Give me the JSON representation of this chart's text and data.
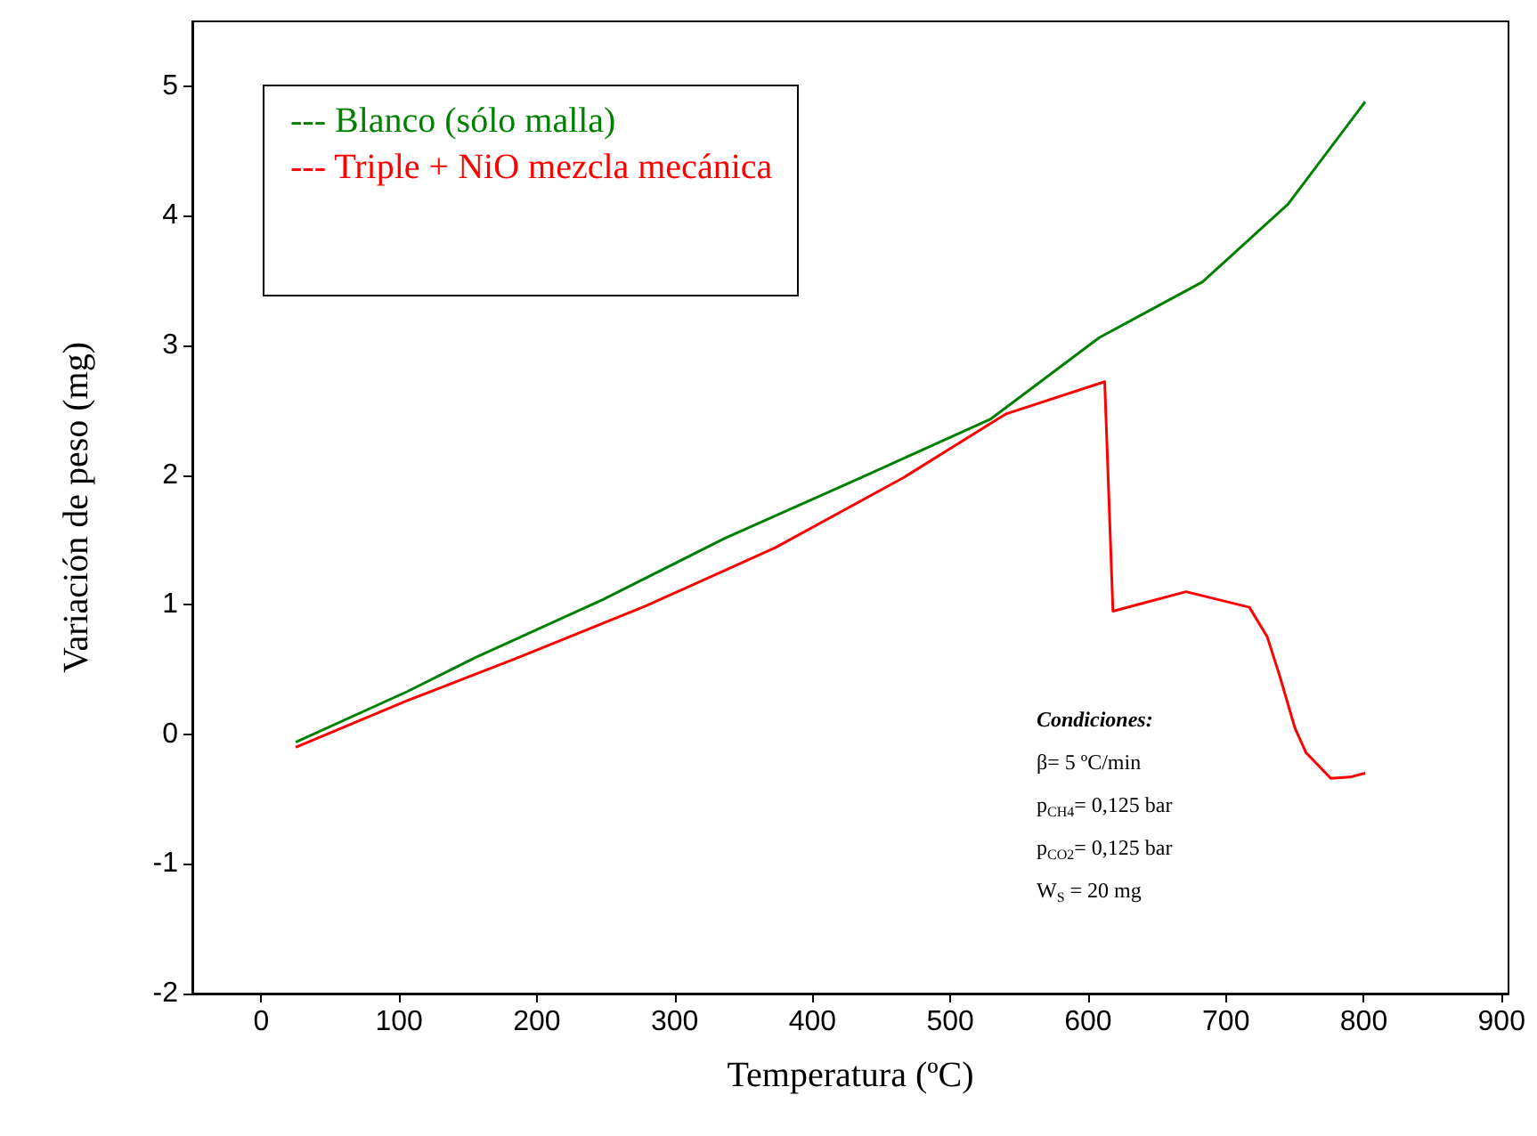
{
  "chart_data": {
    "type": "line",
    "xlabel": "Temperatura (ºC)",
    "ylabel": "Variación de peso (mg)",
    "xlim": [
      -50,
      905
    ],
    "xticks": [
      0,
      100,
      200,
      300,
      400,
      500,
      600,
      700,
      800,
      900
    ],
    "ylim": [
      -2,
      5.5
    ],
    "yticks": [
      -2,
      -1,
      0,
      1,
      2,
      3,
      4,
      5
    ],
    "grid": false,
    "legend": "top left",
    "marker": "none",
    "line_style": "solid",
    "series": [
      {
        "name": "--- Blanco (sólo malla)",
        "color": "#008000",
        "x": [
          25,
          106,
          155,
          248,
          336,
          435,
          529,
          608,
          683,
          745,
          801
        ],
        "values": [
          -0.06,
          0.33,
          0.59,
          1.04,
          1.51,
          1.98,
          2.43,
          3.06,
          3.49,
          4.09,
          4.88
        ]
      },
      {
        "name": "--- Triple + NiO mezcla mecánica",
        "color": "#ff0000",
        "x": [
          25,
          106,
          186,
          279,
          373,
          466,
          540,
          612,
          618,
          671,
          717,
          730,
          739,
          750,
          758,
          776,
          790,
          801
        ],
        "values": [
          -0.1,
          0.26,
          0.59,
          0.99,
          1.44,
          1.98,
          2.47,
          2.72,
          0.95,
          1.1,
          0.98,
          0.75,
          0.45,
          0.05,
          -0.14,
          -0.34,
          -0.33,
          -0.3
        ]
      }
    ],
    "annotations": [
      "Condiciones:",
      "β= 5 ºC/min",
      "p$_{CH4}$= 0,125 bar",
      "p$_{CO2}$= 0,125 bar",
      "W$_{S}$ = 20 mg"
    ]
  }
}
